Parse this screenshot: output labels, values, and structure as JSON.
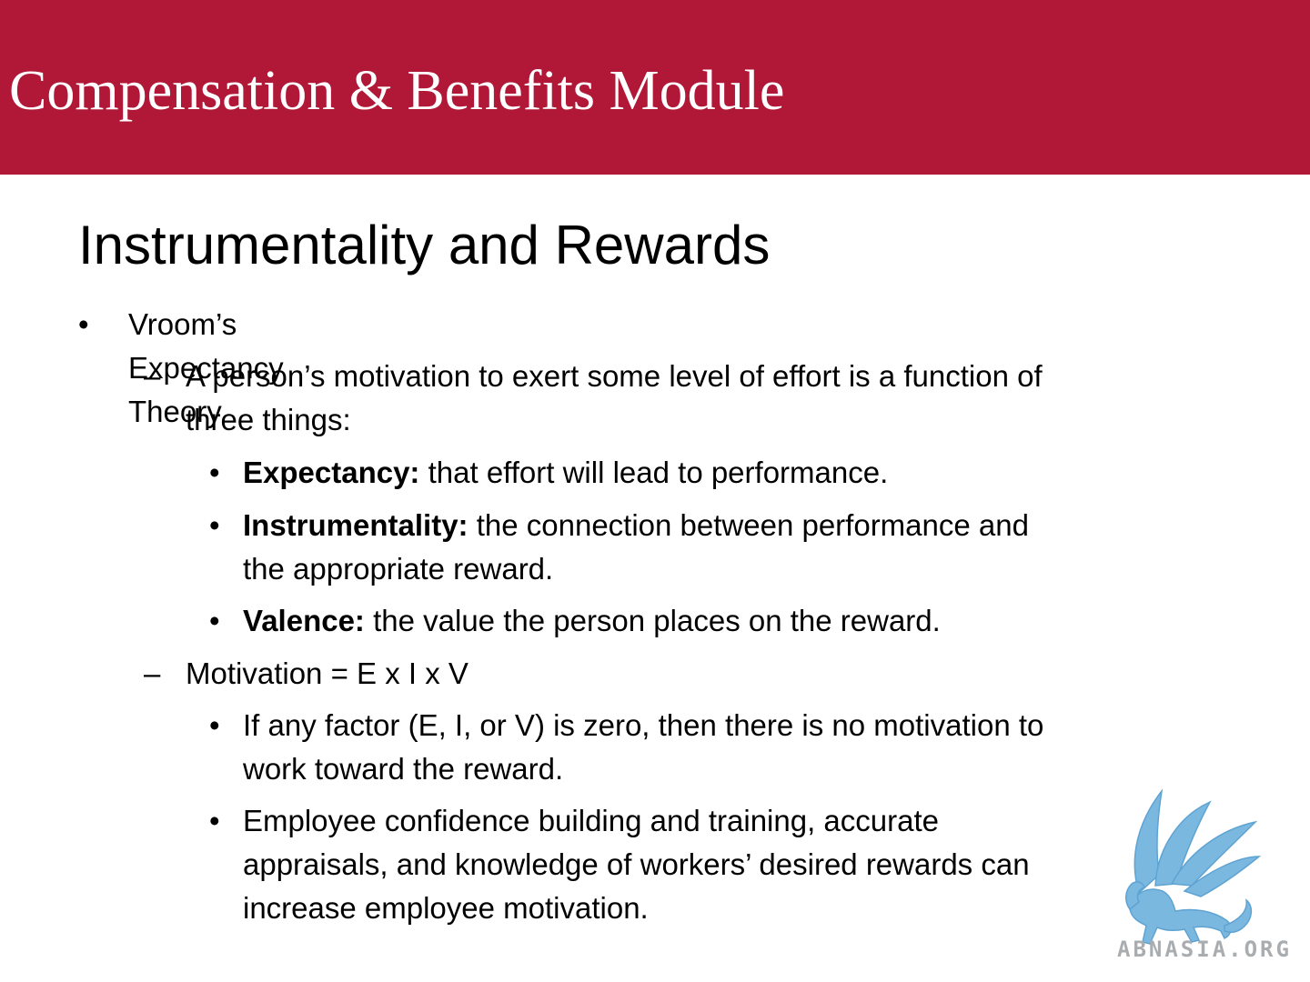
{
  "header": {
    "module_title": "Compensation & Benefits Module",
    "band_color": "#b11737"
  },
  "slide": {
    "title": "Instrumentality and Rewards",
    "bullets": {
      "b1": {
        "marker": "•",
        "text": "Vroom’s Expectancy Theory"
      },
      "b1_1": {
        "marker": "–",
        "line1": "A person’s motivation to exert some level of effort is a function of",
        "line2": "three things:"
      },
      "b1_1_1": {
        "marker": "•",
        "term": "Expectancy:",
        "text": " that effort will lead to performance."
      },
      "b1_1_2": {
        "marker": "•",
        "term": "Instrumentality:",
        "line1": " the connection between performance and",
        "line2": "the appropriate reward."
      },
      "b1_1_3": {
        "marker": "•",
        "term": "Valence:",
        "text": " the value the person places on the reward."
      },
      "b1_2": {
        "marker": "–",
        "text": "Motivation = E x I x V"
      },
      "b1_2_1": {
        "marker": "•",
        "line1": "If any factor (E, I, or V) is zero, then there is no motivation to",
        "line2": "work toward the reward."
      },
      "b1_2_2": {
        "marker": "•",
        "line1": "Employee confidence building and training, accurate",
        "line2": "appraisals, and knowledge of workers’ desired rewards can",
        "line3": "increase employee motivation."
      }
    }
  },
  "watermark": {
    "text": "ABNASIA.ORG",
    "logo_color": "#7ab8e0",
    "icon": "griffin-logo-icon"
  }
}
